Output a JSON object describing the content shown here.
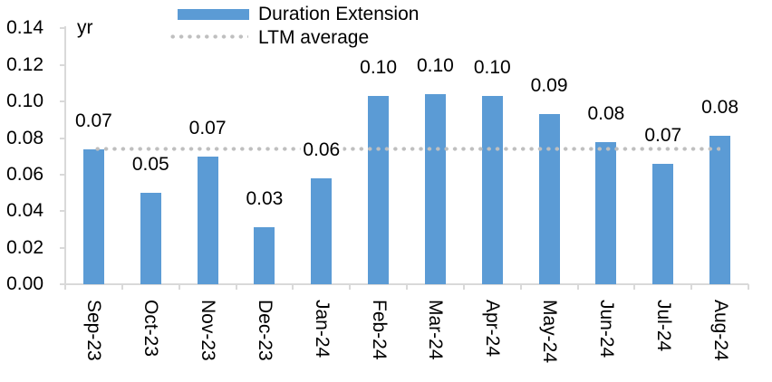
{
  "chart_data": {
    "type": "bar",
    "title": "",
    "unit_label": "yr",
    "categories": [
      "Sep-23",
      "Oct-23",
      "Nov-23",
      "Dec-23",
      "Jan-24",
      "Feb-24",
      "Mar-24",
      "Apr-24",
      "May-24",
      "Jun-24",
      "Jul-24",
      "Aug-24"
    ],
    "series": [
      {
        "name": "Duration Extension",
        "type": "bar",
        "color": "#5B9BD5",
        "values": [
          0.074,
          0.05,
          0.07,
          0.031,
          0.058,
          0.103,
          0.104,
          0.103,
          0.093,
          0.078,
          0.066,
          0.081
        ],
        "data_labels": [
          "0.07",
          "0.05",
          "0.07",
          "0.03",
          "0.06",
          "0.10",
          "0.10",
          "0.10",
          "0.09",
          "0.08",
          "0.07",
          "0.08"
        ]
      },
      {
        "name": "LTM average",
        "type": "line",
        "line_style": "dotted",
        "color": "#BFBFBF",
        "value": 0.074
      }
    ],
    "ylim": [
      0,
      0.14
    ],
    "ytick_labels": [
      "0.00",
      "0.02",
      "0.04",
      "0.06",
      "0.08",
      "0.10",
      "0.12",
      "0.14"
    ],
    "grid": false,
    "legend_position": "top-center",
    "x_label_rotation_deg": 90
  },
  "colors": {
    "bar": "#5B9BD5",
    "dotted_line": "#BFBFBF",
    "axis": "#D9D9D9",
    "text": "#000000",
    "background": "#FFFFFF"
  }
}
